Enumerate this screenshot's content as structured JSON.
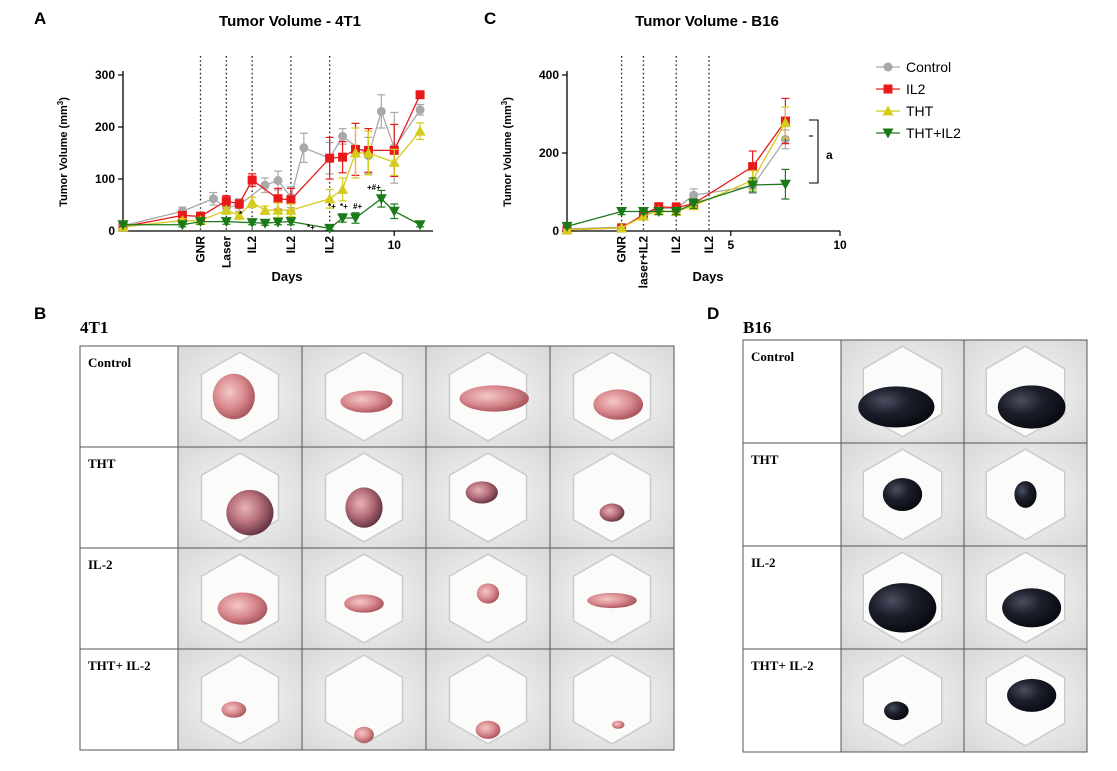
{
  "panel_letters": {
    "a": "A",
    "b": "B",
    "c": "C",
    "d": "D"
  },
  "colors": {
    "Control": "#a9a9a9",
    "IL2": "#e8191b",
    "THT": "#d4cb1b",
    "THT+IL2": "#1a7a1a"
  },
  "chart_data": [
    {
      "id": "chart-4t1",
      "type": "line",
      "title": "Tumor Volume - 4T1",
      "xlabel": "Days",
      "ylabel": "Tumor Volume (mm³)",
      "ylabel_main": "Tumor Volume (mm",
      "ylabel_sup": "3",
      "ylabel_close": ")",
      "xlim": [
        -0.5,
        11.5
      ],
      "ylim": [
        0,
        300
      ],
      "yticks": [
        0,
        100,
        200,
        300
      ],
      "xticks": [
        {
          "value": 10,
          "label": "10"
        }
      ],
      "dotted_lines": [
        {
          "x": 2.5,
          "label": "GNR"
        },
        {
          "x": 3.5,
          "label": "Laser"
        },
        {
          "x": 4.5,
          "label": "IL2"
        },
        {
          "x": 6.0,
          "label": "IL2"
        },
        {
          "x": 7.5,
          "label": "IL2"
        }
      ],
      "legend": [
        "Control",
        "IL2",
        "THT",
        "THT+IL2"
      ],
      "series": [
        {
          "name": "Control",
          "marker": "circle",
          "x": [
            -0.5,
            1.8,
            3.0,
            3.5,
            4.0,
            5.0,
            5.5,
            6.0,
            6.5,
            7.5,
            8.0,
            9.0,
            9.5,
            10.0,
            11.0
          ],
          "y": [
            10,
            38,
            62,
            45,
            50,
            88,
            97,
            65,
            160,
            140,
            182,
            145,
            230,
            160,
            233
          ],
          "err": [
            6,
            8,
            12,
            10,
            12,
            14,
            18,
            20,
            28,
            30,
            15,
            35,
            32,
            68,
            10
          ]
        },
        {
          "name": "IL2",
          "marker": "square",
          "x": [
            -0.5,
            1.8,
            2.5,
            3.5,
            4.0,
            4.5,
            5.5,
            6.0,
            7.5,
            8.0,
            8.5,
            9.0,
            10.0,
            11.0
          ],
          "y": [
            8,
            30,
            28,
            58,
            52,
            98,
            62,
            60,
            140,
            142,
            157,
            155,
            155,
            262
          ],
          "err": [
            4,
            6,
            8,
            10,
            8,
            12,
            20,
            22,
            40,
            30,
            50,
            42,
            50,
            6
          ]
        },
        {
          "name": "THT",
          "marker": "triangle-up",
          "x": [
            -0.5,
            1.8,
            2.5,
            3.5,
            4.0,
            4.5,
            5.0,
            5.5,
            6.0,
            7.5,
            8.0,
            8.5,
            9.0,
            10.0,
            11.0
          ],
          "y": [
            8,
            20,
            20,
            40,
            30,
            55,
            40,
            40,
            40,
            62,
            80,
            150,
            150,
            132,
            192
          ],
          "err": [
            3,
            4,
            6,
            6,
            6,
            10,
            8,
            14,
            12,
            18,
            22,
            48,
            42,
            25,
            16
          ]
        },
        {
          "name": "THT+IL2",
          "marker": "triangle-down",
          "x": [
            -0.5,
            1.8,
            2.5,
            3.5,
            4.5,
            5.0,
            5.5,
            6.0,
            7.5,
            8.0,
            8.5,
            9.5,
            10.0,
            11.0
          ],
          "y": [
            12,
            12,
            18,
            18,
            16,
            15,
            17,
            18,
            5,
            25,
            25,
            62,
            38,
            12
          ],
          "err": [
            3,
            4,
            5,
            5,
            4,
            4,
            5,
            6,
            3,
            8,
            10,
            16,
            14,
            4
          ]
        }
      ],
      "annotations": [
        {
          "text": "*",
          "x": 5.2,
          "y": 30
        },
        {
          "text": "*+",
          "x": 7.9,
          "y": 2
        },
        {
          "text": "*+",
          "x": 8.3,
          "y": 25
        },
        {
          "text": "*+",
          "x": 8.8,
          "y": 25
        },
        {
          "text": "#+",
          "x": 9.2,
          "y": 25
        },
        {
          "text": "+#+",
          "x": 9.7,
          "y": 75
        }
      ]
    },
    {
      "id": "chart-b16",
      "type": "line",
      "title": "Tumor Volume - B16",
      "xlabel": "Days",
      "ylabel": "Tumor Volume (mm³)",
      "ylabel_main": "Tumor Volume (mm",
      "ylabel_sup": "3",
      "ylabel_close": ")",
      "xlim": [
        -2.5,
        10
      ],
      "ylim": [
        0,
        400
      ],
      "yticks": [
        0,
        200,
        400
      ],
      "xticks": [
        {
          "value": 5,
          "label": "5"
        },
        {
          "value": 10,
          "label": "10"
        }
      ],
      "dotted_lines": [
        {
          "x": 0.0,
          "label": "GNR"
        },
        {
          "x": 1.0,
          "label": "laser+IL2"
        },
        {
          "x": 2.5,
          "label": "IL2"
        },
        {
          "x": 4.0,
          "label": "IL2"
        }
      ],
      "legend": [
        "Control",
        "IL2",
        "THT",
        "THT+IL2"
      ],
      "series": [
        {
          "name": "Control",
          "marker": "circle",
          "x": [
            -2.5,
            0.0,
            1.0,
            1.7,
            2.5,
            3.3,
            6.0,
            7.5
          ],
          "y": [
            5,
            10,
            40,
            58,
            58,
            92,
            115,
            235
          ],
          "err": [
            3,
            4,
            8,
            10,
            12,
            16,
            18,
            24
          ]
        },
        {
          "name": "IL2",
          "marker": "square",
          "x": [
            -2.5,
            0.0,
            1.0,
            1.7,
            2.5,
            3.3,
            6.0,
            7.5
          ],
          "y": [
            3,
            8,
            42,
            62,
            60,
            70,
            165,
            282
          ],
          "err": [
            2,
            3,
            6,
            10,
            12,
            12,
            40,
            58
          ]
        },
        {
          "name": "THT",
          "marker": "triangle-up",
          "x": [
            -2.5,
            0.0,
            1.0,
            1.7,
            2.5,
            3.3,
            6.0,
            7.5
          ],
          "y": [
            3,
            8,
            38,
            52,
            50,
            65,
            130,
            278
          ],
          "err": [
            2,
            3,
            6,
            8,
            10,
            10,
            25,
            40
          ]
        },
        {
          "name": "THT+IL2",
          "marker": "triangle-down",
          "x": [
            -2.5,
            0.0,
            1.0,
            1.7,
            2.5,
            3.3,
            6.0,
            7.5
          ],
          "y": [
            12,
            50,
            50,
            50,
            50,
            70,
            118,
            120
          ],
          "err": [
            3,
            8,
            6,
            8,
            8,
            12,
            18,
            38
          ]
        }
      ],
      "annotations": [
        {
          "text": "a"
        }
      ]
    }
  ],
  "grids": {
    "t1": {
      "title": "4T1",
      "rows": [
        {
          "label": "Control",
          "tumor": "pink",
          "samples": [
            {
              "dx": -0.05,
              "dy": 0.0,
              "w": 0.34,
              "h": 0.45
            },
            {
              "dx": 0.02,
              "dy": 0.05,
              "w": 0.42,
              "h": 0.22
            },
            {
              "dx": 0.05,
              "dy": 0.02,
              "w": 0.56,
              "h": 0.26
            },
            {
              "dx": 0.05,
              "dy": 0.08,
              "w": 0.4,
              "h": 0.3
            }
          ]
        },
        {
          "label": "THT",
          "tumor": "pink-dark",
          "samples": [
            {
              "dx": 0.08,
              "dy": 0.15,
              "w": 0.38,
              "h": 0.45
            },
            {
              "dx": 0.0,
              "dy": 0.1,
              "w": 0.3,
              "h": 0.4
            },
            {
              "dx": -0.05,
              "dy": -0.05,
              "w": 0.26,
              "h": 0.22
            },
            {
              "dx": 0.0,
              "dy": 0.15,
              "w": 0.2,
              "h": 0.18
            }
          ]
        },
        {
          "label": "IL-2",
          "tumor": "pink",
          "samples": [
            {
              "dx": 0.02,
              "dy": 0.1,
              "w": 0.4,
              "h": 0.32
            },
            {
              "dx": 0.0,
              "dy": 0.05,
              "w": 0.32,
              "h": 0.18
            },
            {
              "dx": 0.0,
              "dy": -0.05,
              "w": 0.18,
              "h": 0.2
            },
            {
              "dx": 0.0,
              "dy": 0.02,
              "w": 0.4,
              "h": 0.15
            }
          ]
        },
        {
          "label": "THT+ IL-2",
          "tumor": "pink",
          "samples": [
            {
              "dx": -0.05,
              "dy": 0.1,
              "w": 0.2,
              "h": 0.16
            },
            {
              "dx": 0.0,
              "dy": 0.35,
              "w": 0.16,
              "h": 0.16
            },
            {
              "dx": 0.0,
              "dy": 0.3,
              "w": 0.2,
              "h": 0.18
            },
            {
              "dx": 0.05,
              "dy": 0.25,
              "w": 0.1,
              "h": 0.08
            }
          ]
        }
      ]
    },
    "b16": {
      "title": "B16",
      "rows": [
        {
          "label": "Control",
          "tumor": "black",
          "samples": [
            {
              "dx": -0.05,
              "dy": 0.15,
              "w": 0.62,
              "h": 0.4
            },
            {
              "dx": 0.05,
              "dy": 0.15,
              "w": 0.55,
              "h": 0.42
            }
          ]
        },
        {
          "label": "THT",
          "tumor": "black",
          "samples": [
            {
              "dx": 0.0,
              "dy": 0.0,
              "w": 0.32,
              "h": 0.32
            },
            {
              "dx": 0.0,
              "dy": 0.0,
              "w": 0.18,
              "h": 0.26
            }
          ]
        },
        {
          "label": "IL-2",
          "tumor": "black",
          "samples": [
            {
              "dx": 0.0,
              "dy": 0.1,
              "w": 0.55,
              "h": 0.48
            },
            {
              "dx": 0.05,
              "dy": 0.1,
              "w": 0.48,
              "h": 0.38
            }
          ]
        },
        {
          "label": "THT+ IL-2",
          "tumor": "black",
          "samples": [
            {
              "dx": -0.05,
              "dy": 0.1,
              "w": 0.2,
              "h": 0.18
            },
            {
              "dx": 0.05,
              "dy": -0.05,
              "w": 0.4,
              "h": 0.32
            }
          ]
        }
      ]
    }
  }
}
